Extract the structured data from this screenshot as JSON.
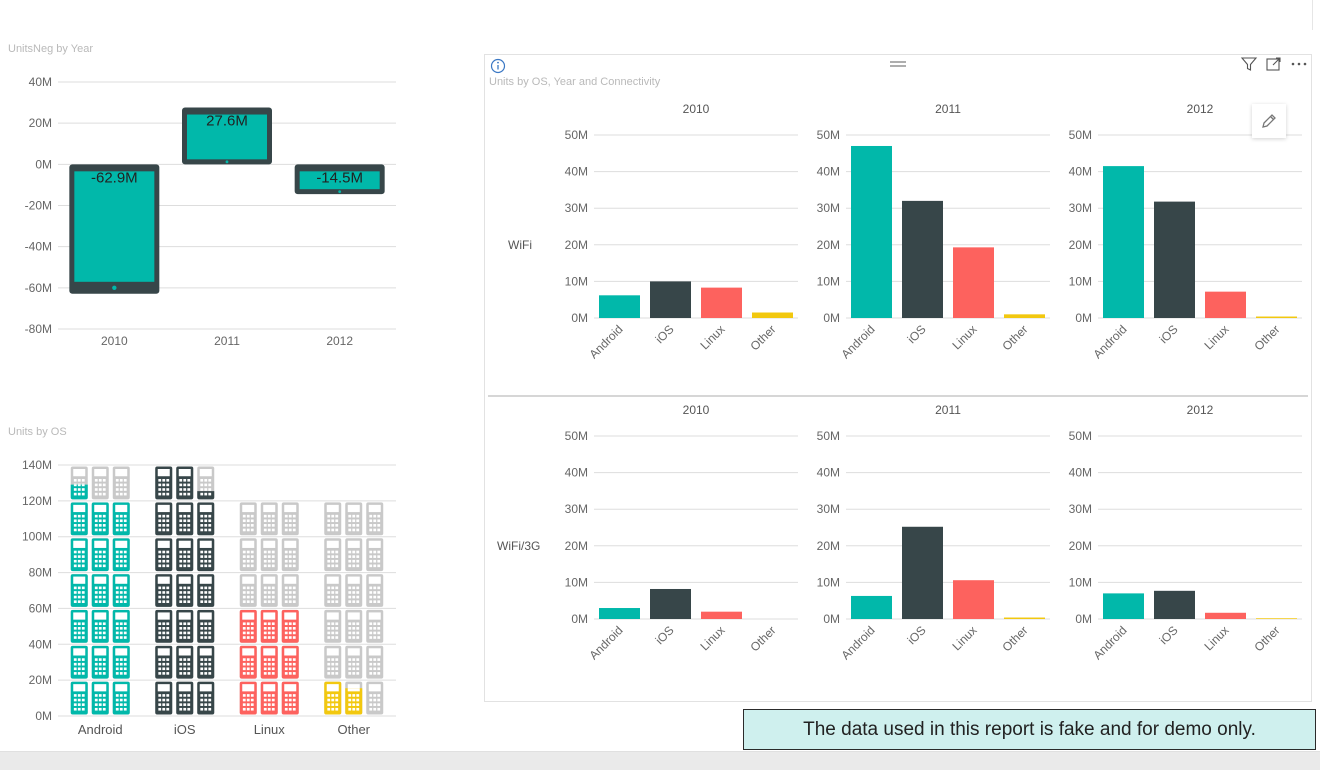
{
  "colors": {
    "Android": "#01b8aa",
    "iOS": "#374649",
    "Linux": "#fd625e",
    "Other": "#f2c80f",
    "empty_phone": "#c9c9c9",
    "tablet_frame": "#374649",
    "grid": "#dddddd",
    "axis_text": "#666666"
  },
  "disclaimer": "The data used in this report is fake and for demo only.",
  "header_icons": [
    "info-icon",
    "drag-handle-icon",
    "filter-icon",
    "focus-mode-icon",
    "more-options-icon",
    "pencil-icon"
  ],
  "chart_data": [
    {
      "id": "unitsneg",
      "type": "bar",
      "title": "UnitsNeg by Year",
      "categories": [
        "2010",
        "2011",
        "2012"
      ],
      "values": [
        -62.9,
        27.6,
        -14.5
      ],
      "data_labels": [
        "-62.9M",
        "27.6M",
        "-14.5M"
      ],
      "unit": "M",
      "ylim": [
        -80,
        40
      ],
      "yticks": [
        "40M",
        "20M",
        "0M",
        "-20M",
        "-40M",
        "-60M",
        "-80M"
      ],
      "grid": true
    },
    {
      "id": "units_by_os",
      "type": "bar",
      "title": "Units by OS",
      "categories": [
        "Android",
        "iOS",
        "Linux",
        "Other"
      ],
      "values": [
        123,
        135,
        60,
        12
      ],
      "unit": "M",
      "ylim": [
        0,
        140
      ],
      "yticks": [
        "140M",
        "120M",
        "100M",
        "80M",
        "60M",
        "40M",
        "20M",
        "0M"
      ],
      "grid": true
    },
    {
      "id": "units_by_os_year_connectivity",
      "type": "bar",
      "title": "Units by OS, Year and Connectivity",
      "columns": [
        "2010",
        "2011",
        "2012"
      ],
      "rows": [
        "WiFi",
        "WiFi/3G"
      ],
      "categories": [
        "Android",
        "iOS",
        "Linux",
        "Other"
      ],
      "unit": "M",
      "ylim": [
        0,
        50
      ],
      "yticks": [
        "50M",
        "40M",
        "30M",
        "20M",
        "10M",
        "0M"
      ],
      "grid": true,
      "cells": [
        {
          "row": "WiFi",
          "column": "2010",
          "values": [
            6.2,
            10.0,
            8.3,
            1.5
          ]
        },
        {
          "row": "WiFi",
          "column": "2011",
          "values": [
            47.0,
            32.0,
            19.3,
            1.0
          ]
        },
        {
          "row": "WiFi",
          "column": "2012",
          "values": [
            41.5,
            31.8,
            7.2,
            0.4
          ]
        },
        {
          "row": "WiFi/3G",
          "column": "2010",
          "values": [
            3.0,
            8.2,
            2.0,
            0.0
          ]
        },
        {
          "row": "WiFi/3G",
          "column": "2011",
          "values": [
            6.3,
            25.2,
            10.6,
            0.4
          ]
        },
        {
          "row": "WiFi/3G",
          "column": "2012",
          "values": [
            7.0,
            7.7,
            1.7,
            0.2
          ]
        }
      ]
    }
  ]
}
